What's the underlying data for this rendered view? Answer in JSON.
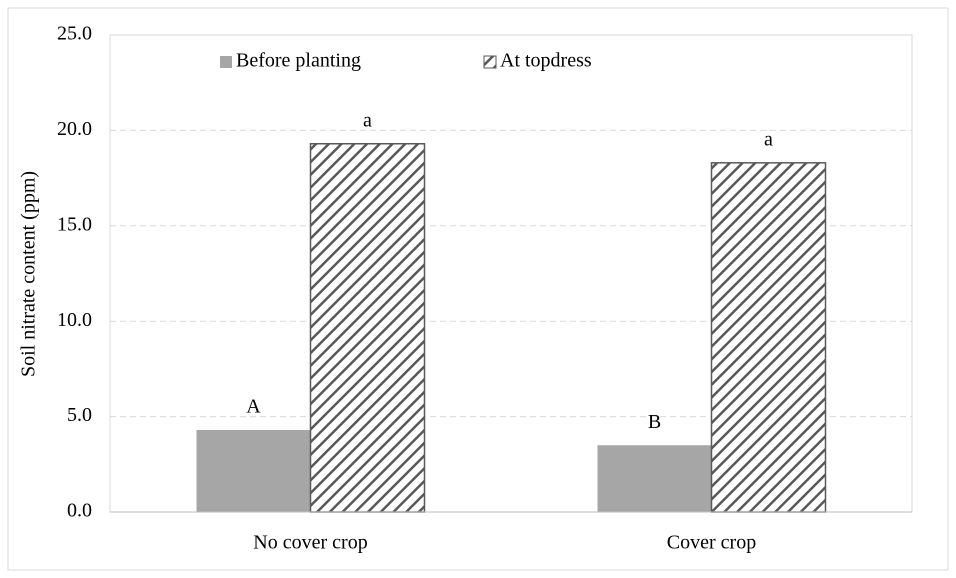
{
  "chart_data": {
    "type": "bar",
    "y_label": "Soil nitrate content (ppm)",
    "categories": [
      "No cover crop",
      "Cover crop"
    ],
    "series": [
      {
        "name": "Before planting",
        "color": "#a6a6a6",
        "values": [
          4.3,
          3.5
        ],
        "annotations": [
          "A",
          "B"
        ]
      },
      {
        "name": "At topdress",
        "color": "#595959",
        "pattern": "hatch",
        "values": [
          19.3,
          18.3
        ],
        "annotations": [
          "a",
          "a"
        ]
      }
    ],
    "ylim": [
      0,
      25
    ],
    "yticks": [
      {
        "value": 0,
        "label": "0.0"
      },
      {
        "value": 5,
        "label": "5.0"
      },
      {
        "value": 10,
        "label": "10.0"
      },
      {
        "value": 15,
        "label": "15.0"
      },
      {
        "value": 20,
        "label": "20.0"
      },
      {
        "value": 25,
        "label": "25.0"
      }
    ],
    "grid": true,
    "legend": "top"
  }
}
